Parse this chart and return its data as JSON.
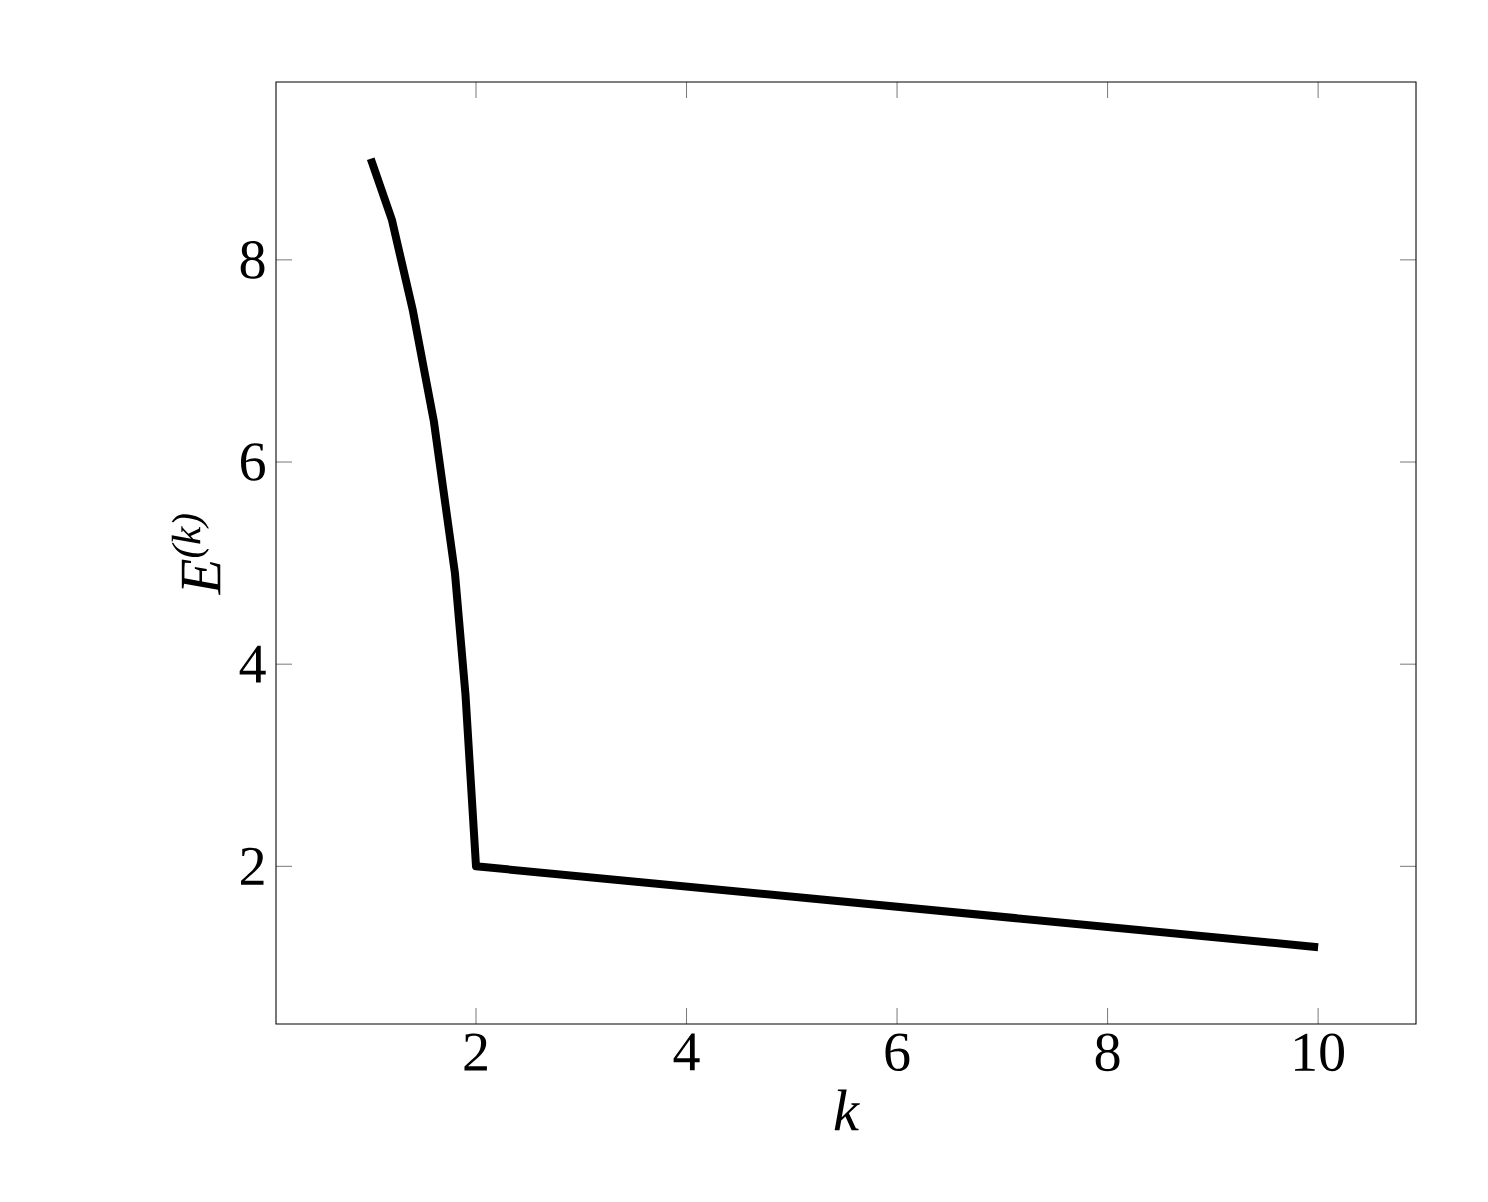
{
  "chart_data": {
    "type": "line",
    "xlabel": "k",
    "ylabel": "E$^{(k)}$",
    "series": [
      {
        "color": "#000000",
        "x": [
          1,
          1.2,
          1.4,
          1.6,
          1.8,
          1.9,
          2,
          10
        ],
        "values": [
          9,
          8.4,
          7.5,
          6.4,
          4.9,
          3.7,
          2,
          1.2
        ]
      }
    ],
    "xlim": [
      0.1,
      10.93
    ],
    "ylim": [
      0.44,
      9.76
    ],
    "xticks": [
      2,
      4,
      6,
      8,
      10
    ],
    "yticks": [
      2,
      4,
      6,
      8
    ],
    "grid": false,
    "marker": "none",
    "line_style": "solid"
  }
}
